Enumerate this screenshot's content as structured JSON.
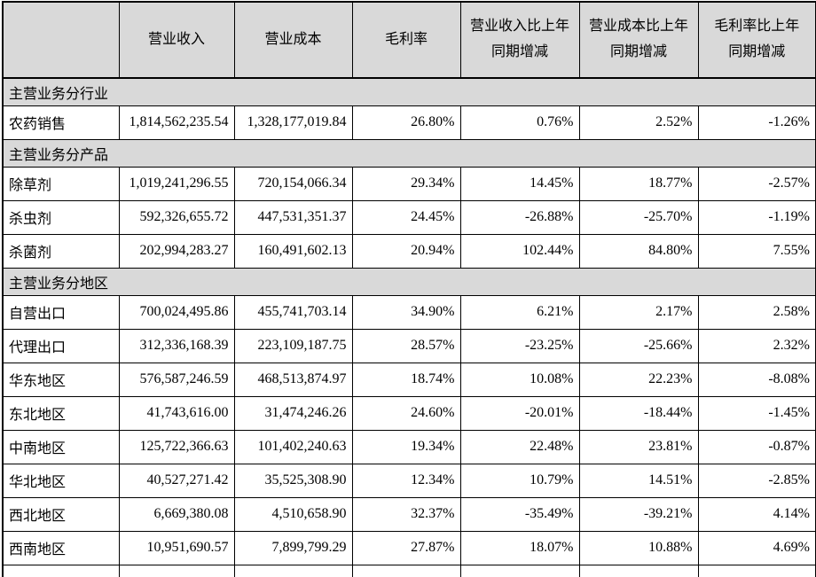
{
  "colors": {
    "header_background": "#d9d9d9",
    "section_background": "#d9d9d9",
    "border": "#000000",
    "text": "#000000",
    "page_background": "#ffffff"
  },
  "table": {
    "header": {
      "cells": [
        "",
        "营业收入",
        "营业成本",
        "毛利率",
        "营业收入比上年同期增减",
        "营业成本比上年同期增减",
        "毛利率比上年同期增减"
      ]
    },
    "rows": [
      {
        "type": "section",
        "label": "主营业务分行业"
      },
      {
        "type": "data",
        "cells": [
          "农药销售",
          "1,814,562,235.54",
          "1,328,177,019.84",
          "26.80%",
          "0.76%",
          "2.52%",
          "-1.26%"
        ]
      },
      {
        "type": "section",
        "label": "主营业务分产品"
      },
      {
        "type": "data",
        "cells": [
          "除草剂",
          "1,019,241,296.55",
          "720,154,066.34",
          "29.34%",
          "14.45%",
          "18.77%",
          "-2.57%"
        ]
      },
      {
        "type": "data",
        "cells": [
          "杀虫剂",
          "592,326,655.72",
          "447,531,351.37",
          "24.45%",
          "-26.88%",
          "-25.70%",
          "-1.19%"
        ]
      },
      {
        "type": "data",
        "cells": [
          "杀菌剂",
          "202,994,283.27",
          "160,491,602.13",
          "20.94%",
          "102.44%",
          "84.80%",
          "7.55%"
        ]
      },
      {
        "type": "section",
        "label": "主营业务分地区"
      },
      {
        "type": "data",
        "cells": [
          "自营出口",
          "700,024,495.86",
          "455,741,703.14",
          "34.90%",
          "6.21%",
          "2.17%",
          "2.58%"
        ]
      },
      {
        "type": "data",
        "cells": [
          "代理出口",
          "312,336,168.39",
          "223,109,187.75",
          "28.57%",
          "-23.25%",
          "-25.66%",
          "2.32%"
        ]
      },
      {
        "type": "data",
        "cells": [
          "华东地区",
          "576,587,246.59",
          "468,513,874.97",
          "18.74%",
          "10.08%",
          "22.23%",
          "-8.08%"
        ]
      },
      {
        "type": "data",
        "cells": [
          "东北地区",
          "41,743,616.00",
          "31,474,246.26",
          "24.60%",
          "-20.01%",
          "-18.44%",
          "-1.45%"
        ]
      },
      {
        "type": "data",
        "cells": [
          "中南地区",
          "125,722,366.63",
          "101,402,240.63",
          "19.34%",
          "22.48%",
          "23.81%",
          "-0.87%"
        ]
      },
      {
        "type": "data",
        "cells": [
          "华北地区",
          "40,527,271.42",
          "35,525,308.90",
          "12.34%",
          "10.79%",
          "14.51%",
          "-2.85%"
        ]
      },
      {
        "type": "data",
        "cells": [
          "西北地区",
          "6,669,380.08",
          "4,510,658.90",
          "32.37%",
          "-35.49%",
          "-39.21%",
          "4.14%"
        ]
      },
      {
        "type": "data",
        "cells": [
          "西南地区",
          "10,951,690.57",
          "7,899,799.29",
          "27.87%",
          "18.07%",
          "10.88%",
          "4.69%"
        ]
      }
    ],
    "partial_row": {
      "cells": [
        "",
        "",
        "",
        "",
        "",
        "",
        ""
      ]
    }
  }
}
